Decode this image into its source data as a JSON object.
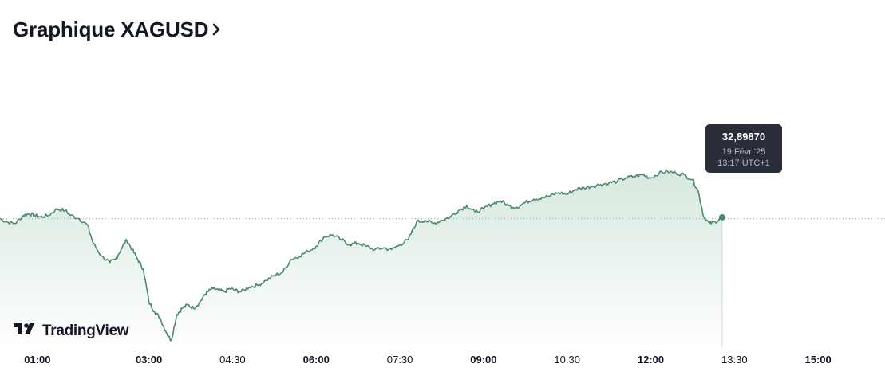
{
  "header": {
    "title": "Graphique XAGUSD"
  },
  "tooltip": {
    "price": "32,89870",
    "date": "19 Févr '25",
    "time": "13:17 UTC+1"
  },
  "branding": {
    "logo_text": "TradingView"
  },
  "colors": {
    "line": "#4a8a6b",
    "area_top": "#d6e8de",
    "area_bottom": "#ffffff",
    "baseline": "#9aa0a6",
    "tooltip_bg": "#2a2e39",
    "text": "#131722"
  },
  "chart_data": {
    "type": "area",
    "title": "Graphique XAGUSD",
    "xlabel": "",
    "ylabel": "",
    "x_ticks": [
      {
        "label": "01:00",
        "hour": 1.0,
        "bold": true
      },
      {
        "label": "03:00",
        "hour": 3.0,
        "bold": true
      },
      {
        "label": "04:30",
        "hour": 4.5,
        "bold": false
      },
      {
        "label": "06:00",
        "hour": 6.0,
        "bold": true
      },
      {
        "label": "07:30",
        "hour": 7.5,
        "bold": false
      },
      {
        "label": "09:00",
        "hour": 9.0,
        "bold": true
      },
      {
        "label": "10:30",
        "hour": 10.5,
        "bold": false
      },
      {
        "label": "12:00",
        "hour": 12.0,
        "bold": true
      },
      {
        "label": "13:30",
        "hour": 13.5,
        "bold": false
      },
      {
        "label": "15:00",
        "hour": 15.0,
        "bold": true
      }
    ],
    "xlim": [
      0.33,
      16.2
    ],
    "ylim": [
      32.5,
      33.2
    ],
    "reference_value": 32.895,
    "crosshair_hour": 13.28,
    "y_axis_labels_shown": false,
    "grid": false,
    "series": [
      {
        "x": [
          0.33,
          0.45,
          0.6,
          0.75,
          0.85,
          0.95,
          1.05,
          1.2,
          1.35,
          1.5,
          1.6,
          1.75,
          1.9,
          2.0,
          2.15,
          2.3,
          2.4,
          2.5,
          2.6,
          2.7,
          2.8,
          2.9,
          3.0,
          3.1,
          3.2,
          3.3,
          3.4,
          3.5,
          3.6,
          3.7,
          3.8,
          3.9,
          4.0,
          4.05,
          4.15,
          4.25,
          4.35,
          4.45,
          4.55,
          4.65,
          4.8,
          4.95,
          5.1,
          5.25,
          5.4,
          5.55,
          5.7,
          5.85,
          6.0,
          6.15,
          6.3,
          6.45,
          6.6,
          6.75,
          6.9,
          7.05,
          7.2,
          7.35,
          7.5,
          7.65,
          7.8,
          7.95,
          8.1,
          8.25,
          8.4,
          8.55,
          8.7,
          8.85,
          9.0,
          9.15,
          9.3,
          9.45,
          9.6,
          9.75,
          9.9,
          10.05,
          10.2,
          10.35,
          10.5,
          10.65,
          10.8,
          10.95,
          11.1,
          11.25,
          11.4,
          11.55,
          11.7,
          11.85,
          12.0,
          12.15,
          12.3,
          12.45,
          12.6,
          12.75,
          12.85,
          12.95,
          13.05,
          13.15,
          13.28
        ],
        "y": [
          32.895,
          32.885,
          32.88,
          32.905,
          32.91,
          32.905,
          32.9,
          32.905,
          32.925,
          32.92,
          32.905,
          32.895,
          32.875,
          32.82,
          32.78,
          32.76,
          32.77,
          32.8,
          32.83,
          32.8,
          32.77,
          32.74,
          32.64,
          32.61,
          32.59,
          32.55,
          32.52,
          32.6,
          32.62,
          32.63,
          32.62,
          32.635,
          32.66,
          32.67,
          32.68,
          32.675,
          32.67,
          32.68,
          32.675,
          32.67,
          32.685,
          32.69,
          32.705,
          32.72,
          32.73,
          32.77,
          32.78,
          32.795,
          32.81,
          32.84,
          32.845,
          32.83,
          32.815,
          32.82,
          32.81,
          32.8,
          32.805,
          32.8,
          32.815,
          32.83,
          32.885,
          32.89,
          32.88,
          32.89,
          32.9,
          32.92,
          32.935,
          32.915,
          32.925,
          32.94,
          32.95,
          32.935,
          32.93,
          32.945,
          32.955,
          32.96,
          32.965,
          32.975,
          32.97,
          32.985,
          32.99,
          32.995,
          33.0,
          33.005,
          33.01,
          33.02,
          33.025,
          33.03,
          33.02,
          33.035,
          33.04,
          33.035,
          33.03,
          33.015,
          32.98,
          32.9,
          32.88,
          32.885,
          32.899
        ]
      }
    ]
  }
}
